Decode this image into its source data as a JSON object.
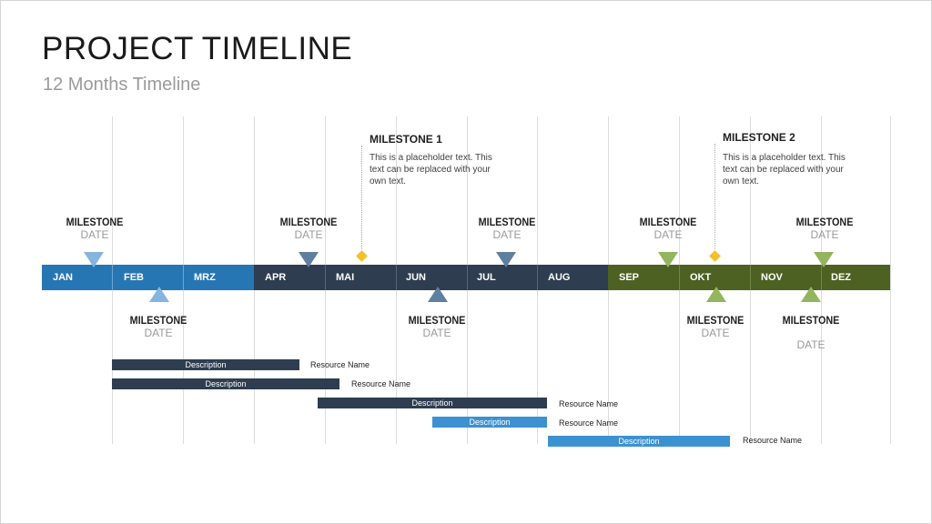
{
  "title": "PROJECT TIMELINE",
  "subtitle": "12 Months Timeline",
  "colors": {
    "blue": "#2776b4",
    "navy": "#2e3d50",
    "green": "#4d6122",
    "light_blue_tri": "#85b5de",
    "steel_tri": "#5f7f9e",
    "light_green_tri": "#92b55d",
    "diamond": "#f2c12e",
    "bar_navy": "#2e3d50",
    "bar_blue": "#3c91d0"
  },
  "months": [
    "JAN",
    "FEB",
    "MRZ",
    "APR",
    "MAI",
    "JUN",
    "JUL",
    "AUG",
    "SEP",
    "OKT",
    "NOV",
    "DEZ"
  ],
  "milestones_top": [
    {
      "label": "MILESTONE",
      "date": "DATE"
    },
    {
      "label": "MILESTONE",
      "date": "DATE"
    },
    {
      "label": "MILESTONE",
      "date": "DATE"
    },
    {
      "label": "MILESTONE",
      "date": "DATE"
    },
    {
      "label": "MILESTONE",
      "date": "DATE"
    }
  ],
  "milestones_bottom": [
    {
      "label": "MILESTONE",
      "date": "DATE"
    },
    {
      "label": "MILESTONE",
      "date": "DATE"
    },
    {
      "label": "MILESTONE",
      "date": "DATE"
    },
    {
      "label": "MILESTONE",
      "date": "DATE"
    }
  ],
  "callouts": [
    {
      "title": "MILESTONE 1",
      "text": "This is a placeholder text. This text can be replaced with your own text."
    },
    {
      "title": "MILESTONE 2",
      "text": "This is a placeholder text. This text can be replaced with your own text."
    }
  ],
  "tasks": [
    {
      "label": "Description",
      "resource": "Resource Name"
    },
    {
      "label": "Description",
      "resource": "Resource Name"
    },
    {
      "label": "Description",
      "resource": "Resource Name"
    },
    {
      "label": "Description",
      "resource": "Resource Name"
    },
    {
      "label": "Description",
      "resource": "Resource Name"
    }
  ]
}
